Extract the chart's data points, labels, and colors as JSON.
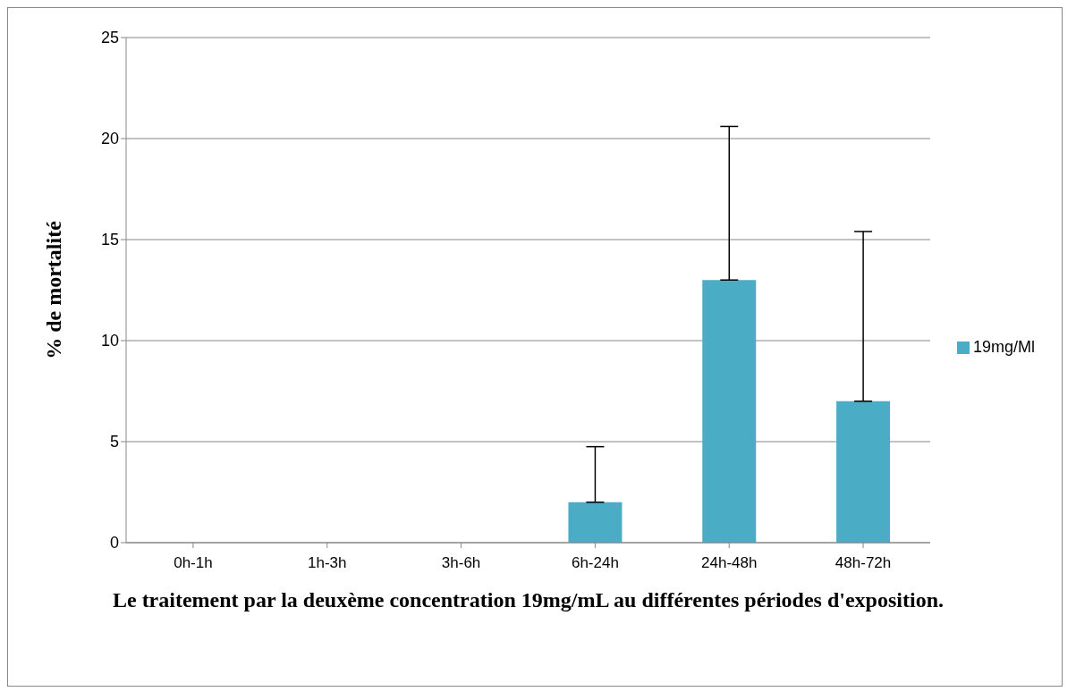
{
  "chart_data": {
    "type": "bar",
    "xlabel": "Le traitement par la deuxème concentration 19mg/mL au différentes périodes d'exposition.",
    "ylabel": "% de mortalité",
    "categories": [
      "0h-1h",
      "1h-3h",
      "3h-6h",
      "6h-24h",
      "24h-48h",
      "48h-72h"
    ],
    "series": [
      {
        "name": "19mg/Ml",
        "color": "#4bacc6",
        "values": [
          0,
          0,
          0,
          2,
          13,
          7
        ],
        "errors": [
          null,
          null,
          null,
          [
            2,
            4.75
          ],
          [
            13,
            20.6
          ],
          [
            7,
            15.4
          ]
        ]
      }
    ],
    "ylim": [
      0,
      25
    ],
    "yticks": [
      0,
      5,
      10,
      15,
      20,
      25
    ],
    "grid": "y",
    "legend": "right"
  }
}
